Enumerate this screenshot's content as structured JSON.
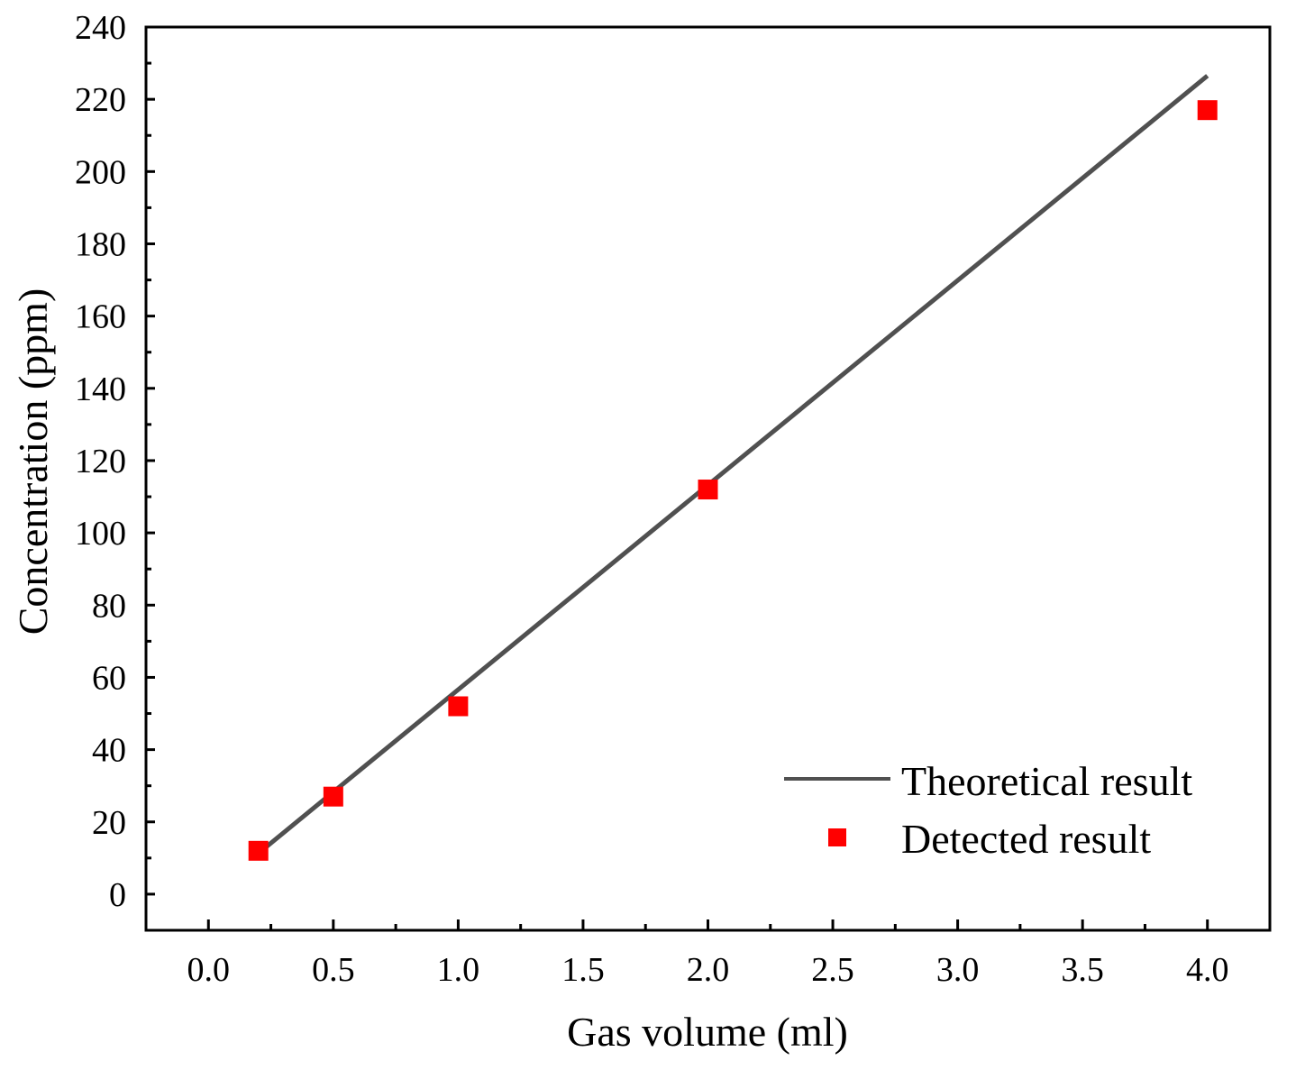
{
  "chart_data": {
    "type": "scatter",
    "title": "",
    "xlabel": "Gas volume (ml)",
    "ylabel": "Concentration (ppm)",
    "xlim": [
      -0.25,
      4.25
    ],
    "ylim": [
      -10,
      240
    ],
    "x_ticks": [
      "0.0",
      "0.5",
      "1.0",
      "1.5",
      "2.0",
      "2.5",
      "3.0",
      "3.5",
      "4.0"
    ],
    "y_ticks": [
      "0",
      "20",
      "40",
      "60",
      "80",
      "100",
      "120",
      "140",
      "160",
      "180",
      "200",
      "220",
      "240"
    ],
    "grid": false,
    "legend_position": "bottom-right",
    "series": [
      {
        "name": "Theoretical result",
        "kind": "line",
        "color": "#505050",
        "x": [
          0.2,
          4.0
        ],
        "y": [
          11.3,
          226.5
        ]
      },
      {
        "name": "Detected result",
        "kind": "scatter",
        "marker": "square",
        "color": "#ff0000",
        "x": [
          0.2,
          0.5,
          1.0,
          2.0,
          4.0
        ],
        "y": [
          12,
          27,
          52,
          112,
          217
        ]
      }
    ]
  }
}
